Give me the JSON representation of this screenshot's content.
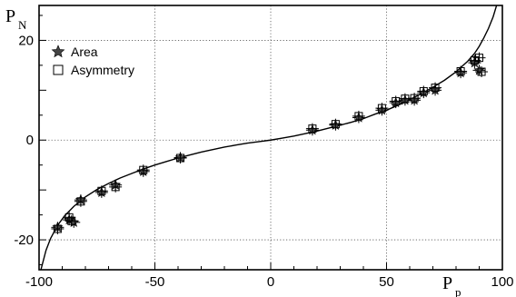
{
  "chart_data": {
    "type": "scatter",
    "x_axis_label": {
      "main": "P",
      "subscript": "p"
    },
    "y_axis_label": {
      "main": "P",
      "subscript": "N"
    },
    "xlim": [
      -100,
      100
    ],
    "ylim": [
      -26,
      27
    ],
    "x_ticks": [
      -100,
      -50,
      0,
      50,
      100
    ],
    "y_ticks": [
      -20,
      0,
      20
    ],
    "x_tick_labels": [
      "-100",
      "-50",
      "0",
      "50",
      "100"
    ],
    "y_tick_labels": [
      "-20",
      "0",
      "20"
    ],
    "grid": "dotted",
    "legend_position": "top-left",
    "series": [
      {
        "name": "Area",
        "marker": "star",
        "x": [
          -92,
          -87,
          -85,
          -82,
          -73,
          -67,
          -55,
          -39,
          18,
          28,
          38,
          48,
          54,
          58,
          62,
          66,
          71,
          82,
          88,
          90
        ],
        "y": [
          -17.5,
          -16,
          -16.5,
          -12,
          -10.5,
          -9,
          -6.3,
          -3.5,
          2,
          3,
          4.5,
          6,
          7.5,
          8,
          8,
          9.5,
          10,
          13.5,
          15.5,
          14
        ]
      },
      {
        "name": "Asymmetry",
        "marker": "open-square",
        "x": [
          -92,
          -87,
          -86,
          -82,
          -73,
          -67,
          -55,
          -39,
          18,
          28,
          38,
          48,
          54,
          58,
          62,
          66,
          71,
          82,
          88,
          90,
          91
        ],
        "y": [
          -17.8,
          -15.5,
          -16.2,
          -12.3,
          -10.2,
          -9.4,
          -6,
          -3.6,
          2.3,
          3.2,
          4.8,
          6.4,
          7.8,
          8.3,
          8.4,
          9.8,
          10.5,
          13.8,
          16,
          16.5,
          13.7
        ]
      }
    ],
    "curve": {
      "x": [
        -99.2,
        -97,
        -95,
        -92,
        -89,
        -85,
        -80,
        -75,
        -70,
        -65,
        -60,
        -55,
        -50,
        -45,
        -40,
        -35,
        -30,
        -25,
        -20,
        -15,
        -10,
        -5,
        0,
        5,
        10,
        15,
        20,
        25,
        30,
        35,
        40,
        45,
        50,
        55,
        60,
        65,
        70,
        75,
        80,
        85,
        88,
        90,
        92,
        94,
        96,
        97.5,
        98.5,
        99.2
      ],
      "y": [
        -26,
        -22.1,
        -19.7,
        -17.1,
        -15.2,
        -13.3,
        -11.4,
        -9.9,
        -8.7,
        -7.6,
        -6.7,
        -5.8,
        -5,
        -4.3,
        -3.6,
        -3,
        -2.4,
        -1.9,
        -1.4,
        -1,
        -0.6,
        -0.3,
        0,
        0.4,
        0.8,
        1.3,
        1.8,
        2.4,
        3,
        3.6,
        4.3,
        5.2,
        6,
        7,
        8.1,
        9.3,
        10.6,
        12,
        13.7,
        15.8,
        17.4,
        18.8,
        20.5,
        22.4,
        24.7,
        27,
        29.5,
        32
      ]
    }
  }
}
